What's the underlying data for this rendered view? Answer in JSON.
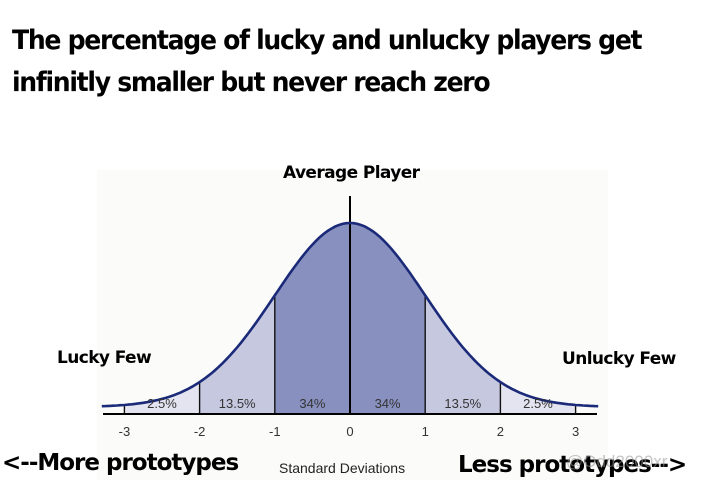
{
  "title_line1": "The percentage of lucky and unlucky players get",
  "title_line2": "infinitly smaller but never reach zero",
  "annotations": {
    "average": "Average Player",
    "lucky": "Lucky Few",
    "unlucky": "Unlucky Few",
    "more": "<--More prototypes",
    "less": "Less prototypes-->",
    "watermark": "@Odd2000xr"
  },
  "colors": {
    "curve": "#1b2a78",
    "band_1sigma": "#8890bf",
    "band_2sigma": "#c6c8e0",
    "band_3sigma": "#e3e4ef",
    "panel_bg": "#fbfcfa"
  },
  "chart_data": {
    "type": "area",
    "title": "The percentage of lucky and unlucky players get infinitly smaller but never reach zero",
    "xlabel": "Standard Deviations",
    "ylabel": "",
    "x_ticks": [
      "-3",
      "-2",
      "-1",
      "0",
      "1",
      "2",
      "3"
    ],
    "xlim": [
      -3.3,
      3.3
    ],
    "grid": false,
    "legend": "none",
    "bands": [
      {
        "from": -3,
        "to": -2,
        "label": "2.5%",
        "value": 2.5
      },
      {
        "from": -2,
        "to": -1,
        "label": "13.5%",
        "value": 13.5
      },
      {
        "from": -1,
        "to": 0,
        "label": "34%",
        "value": 34
      },
      {
        "from": 0,
        "to": 1,
        "label": "34%",
        "value": 34
      },
      {
        "from": 1,
        "to": 2,
        "label": "13.5%",
        "value": 13.5
      },
      {
        "from": 2,
        "to": 3,
        "label": "2.5%",
        "value": 2.5
      }
    ],
    "annotations": [
      {
        "x": 0,
        "text": "Average Player"
      },
      {
        "x": -3,
        "text": "Lucky Few"
      },
      {
        "x": 3,
        "text": "Unlucky Few"
      }
    ]
  }
}
